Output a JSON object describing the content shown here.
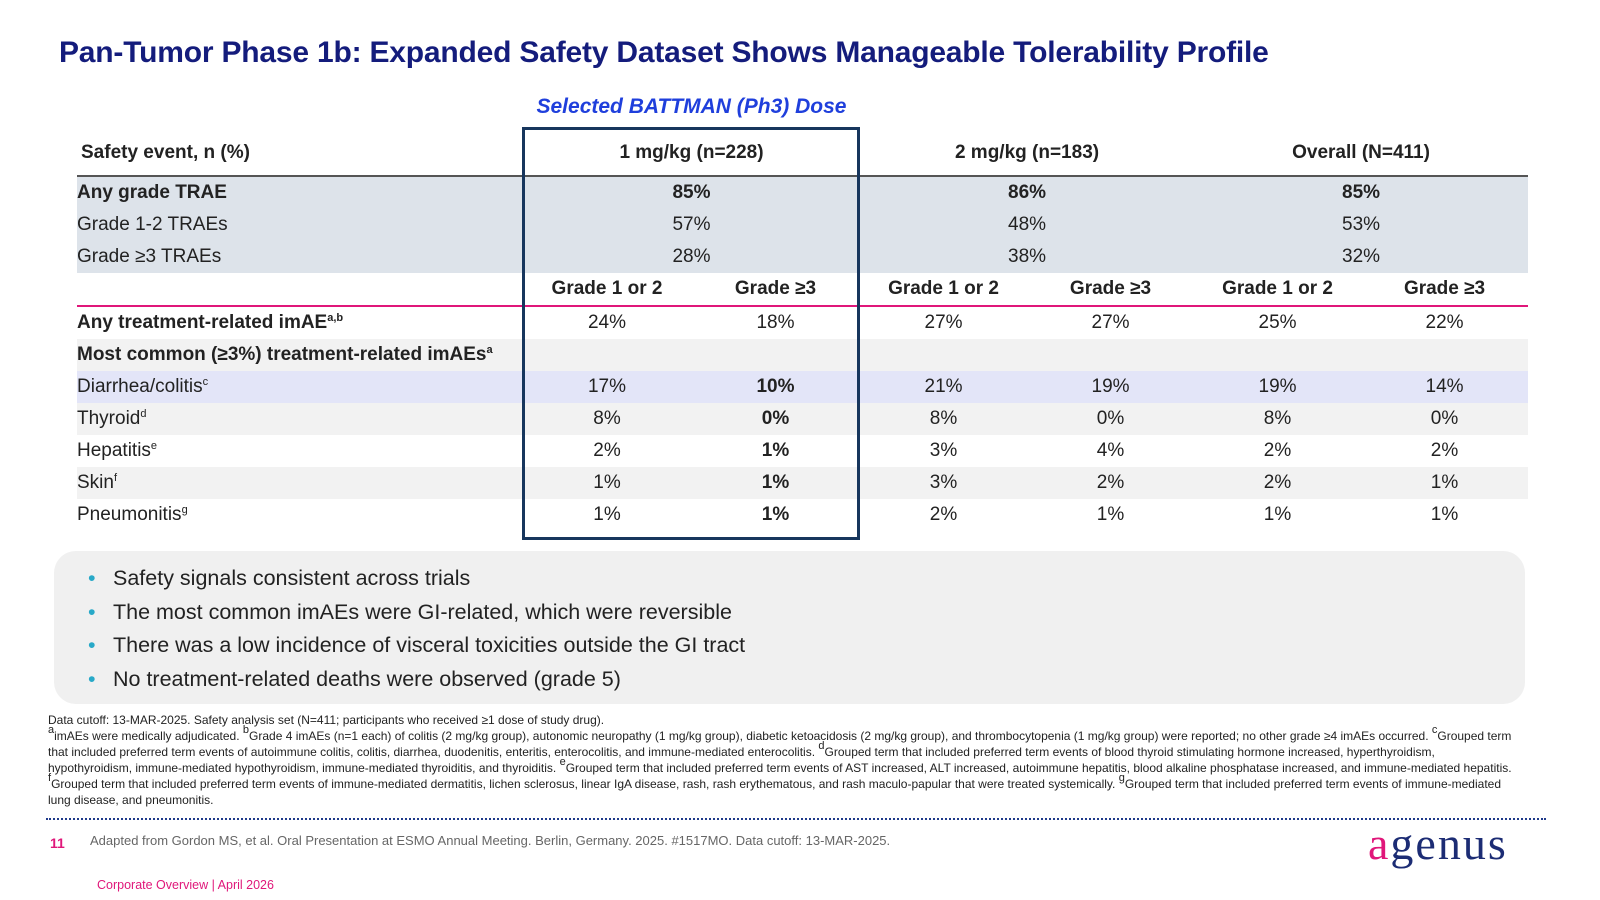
{
  "title": "Pan-Tumor Phase 1b: Expanded Safety Dataset Shows Manageable Tolerability Profile",
  "highlight_label": "Selected BATTMAN (Ph3) Dose",
  "table": {
    "header": [
      "Safety event, n (%)",
      "1 mg/kg (n=228)",
      "2 mg/kg (n=183)",
      "Overall (N=411)"
    ],
    "trae_rows": [
      {
        "label": "Any grade TRAE",
        "bold": true,
        "values": [
          "85%",
          "86%",
          "85%"
        ]
      },
      {
        "label": "Grade 1-2 TRAEs",
        "bold": false,
        "values": [
          "57%",
          "48%",
          "53%"
        ]
      },
      {
        "label": "Grade ≥3 TRAEs",
        "bold": false,
        "values": [
          "28%",
          "38%",
          "32%"
        ]
      }
    ],
    "subheader": [
      "Grade 1 or 2",
      "Grade ≥3",
      "Grade 1 or 2",
      "Grade ≥3",
      "Grade 1 or 2",
      "Grade ≥3"
    ],
    "imae_rows": [
      {
        "label": "Any treatment-related imAE",
        "sup": "a,b",
        "bold": true,
        "values": [
          "24%",
          "18%",
          "27%",
          "27%",
          "25%",
          "22%"
        ]
      },
      {
        "label": "Most common (≥3%) treatment-related imAEs",
        "sup": "a",
        "bold": true,
        "values": []
      },
      {
        "label": "Diarrhea/colitis",
        "sup": "c",
        "bold": false,
        "values": [
          "17%",
          "10%",
          "21%",
          "19%",
          "19%",
          "14%"
        ]
      },
      {
        "label": "Thyroid",
        "sup": "d",
        "bold": false,
        "values": [
          "8%",
          "0%",
          "8%",
          "0%",
          "8%",
          "0%"
        ]
      },
      {
        "label": "Hepatitis",
        "sup": "e",
        "bold": false,
        "values": [
          "2%",
          "1%",
          "3%",
          "4%",
          "2%",
          "2%"
        ]
      },
      {
        "label": "Skin",
        "sup": "f",
        "bold": false,
        "values": [
          "1%",
          "1%",
          "3%",
          "2%",
          "2%",
          "1%"
        ]
      },
      {
        "label": "Pneumonitis",
        "sup": "g",
        "bold": false,
        "values": [
          "1%",
          "1%",
          "2%",
          "1%",
          "1%",
          "1%"
        ]
      }
    ]
  },
  "bullets": [
    "Safety signals consistent across trials",
    "The most common imAEs were GI-related, which were reversible",
    "There was a low incidence of visceral toxicities outside the GI tract",
    "No treatment-related deaths were observed (grade 5)"
  ],
  "footnotes": {
    "cutoff": "Data cutoff: 13-MAR-2025. Safety analysis set (N=411; participants who received ≥1 dose of study drug).",
    "notes": [
      {
        "mark": "a",
        "text": "imAEs were medically adjudicated."
      },
      {
        "mark": "b",
        "text": "Grade 4 imAEs (n=1 each) of colitis (2 mg/kg group), autonomic neuropathy (1 mg/kg group), diabetic ketoacidosis (2 mg/kg group), and thrombocytopenia (1 mg/kg group) were reported; no other grade ≥4 imAEs occurred."
      },
      {
        "mark": "c",
        "text": "Grouped term that included preferred term events of autoimmune colitis, colitis, diarrhea, duodenitis, enteritis, enterocolitis, and immune-mediated enterocolitis."
      },
      {
        "mark": "d",
        "text": "Grouped term that included preferred term events of blood thyroid stimulating hormone increased, hyperthyroidism, hypothyroidism, immune-mediated hypothyroidism, immune-mediated thyroiditis, and thyroiditis."
      },
      {
        "mark": "e",
        "text": "Grouped term that included preferred term events of AST increased, ALT increased, autoimmune hepatitis, blood alkaline phosphatase increased, and immune-mediated hepatitis."
      },
      {
        "mark": "f",
        "text": "Grouped term that included preferred term events of immune-mediated dermatitis, lichen sclerosus, linear IgA disease, rash, rash erythematous, and rash maculo-papular that were treated systemically."
      },
      {
        "mark": "g",
        "text": "Grouped term that included preferred term events of immune-mediated lung disease, and pneumonitis."
      }
    ]
  },
  "footer": {
    "page_number": "11",
    "source": "Adapted from Gordon MS, et al. Oral Presentation at ESMO Annual Meeting. Berlin, Germany. 2025. #1517MO. Data cutoff: 13-MAR-2025.",
    "deck": "Corporate Overview | April 2026",
    "logo": {
      "accent": "a",
      "rest": "genus"
    }
  }
}
